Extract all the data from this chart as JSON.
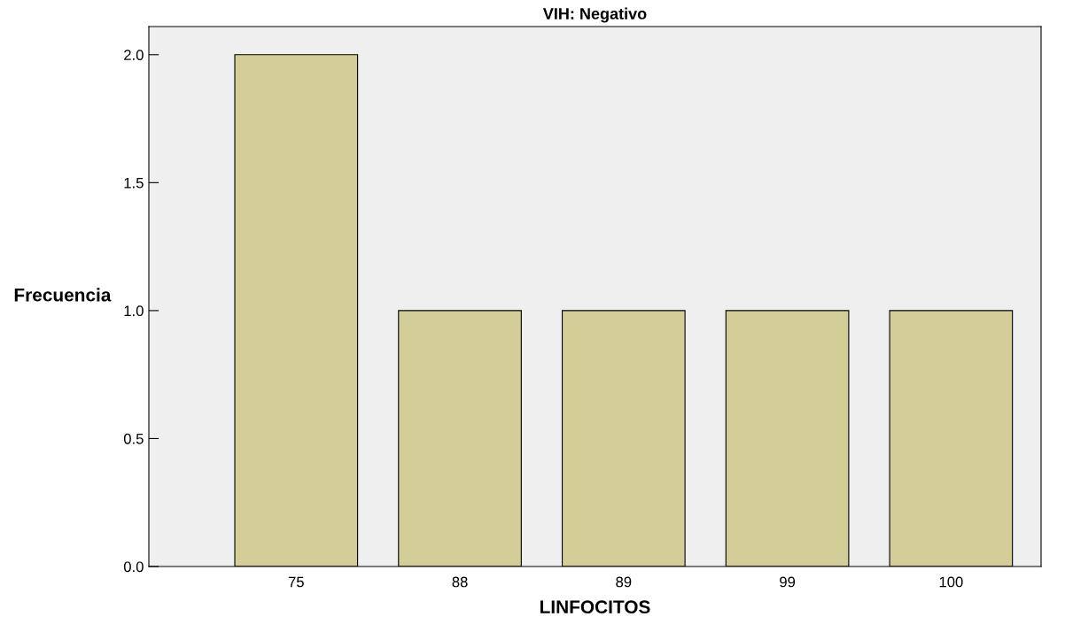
{
  "chart_data": {
    "type": "bar",
    "title": "VIH: Negativo",
    "xlabel": "LINFOCITOS",
    "ylabel": "Frecuencia",
    "categories": [
      "75",
      "88",
      "89",
      "99",
      "100"
    ],
    "values": [
      2,
      1,
      1,
      1,
      1
    ],
    "color": "#d3ce98",
    "ylim": [
      0,
      2.11
    ],
    "yticks": [
      {
        "value": 0,
        "label": "0.0"
      },
      0.5,
      {
        "value": 1,
        "label": "1.0"
      },
      1.5,
      {
        "value": 2,
        "label": "2.0"
      }
    ],
    "grid": false
  }
}
